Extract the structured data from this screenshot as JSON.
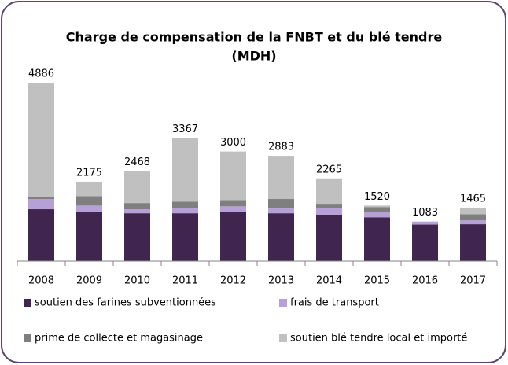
{
  "chart_data": {
    "type": "stacked_bar",
    "title": "Charge de compensation de la FNBT et du blé tendre",
    "subtitle": "(MDH)",
    "categories": [
      "2008",
      "2009",
      "2010",
      "2011",
      "2012",
      "2013",
      "2014",
      "2015",
      "2016",
      "2017"
    ],
    "series": [
      {
        "name": "soutien des farines subventionnées",
        "color": "#40264f",
        "values": [
          1420,
          1350,
          1310,
          1310,
          1350,
          1310,
          1270,
          1200,
          1000,
          1010
        ]
      },
      {
        "name": "frais de transport",
        "color": "#b6a0d8",
        "values": [
          280,
          170,
          110,
          150,
          150,
          130,
          190,
          150,
          83,
          105
        ]
      },
      {
        "name": "prime de collecte et magasinage",
        "color": "#7f7f7f",
        "values": [
          65,
          260,
          170,
          170,
          170,
          260,
          110,
          130,
          0,
          170
        ]
      },
      {
        "name": "soutien blé tendre local et importé",
        "color": "#c0c0c0",
        "values": [
          3121,
          395,
          878,
          1737,
          1330,
          1183,
          695,
          40,
          0,
          180
        ]
      }
    ],
    "totals": [
      4886,
      2175,
      2468,
      3367,
      3000,
      2883,
      2265,
      1520,
      1083,
      1465
    ]
  }
}
